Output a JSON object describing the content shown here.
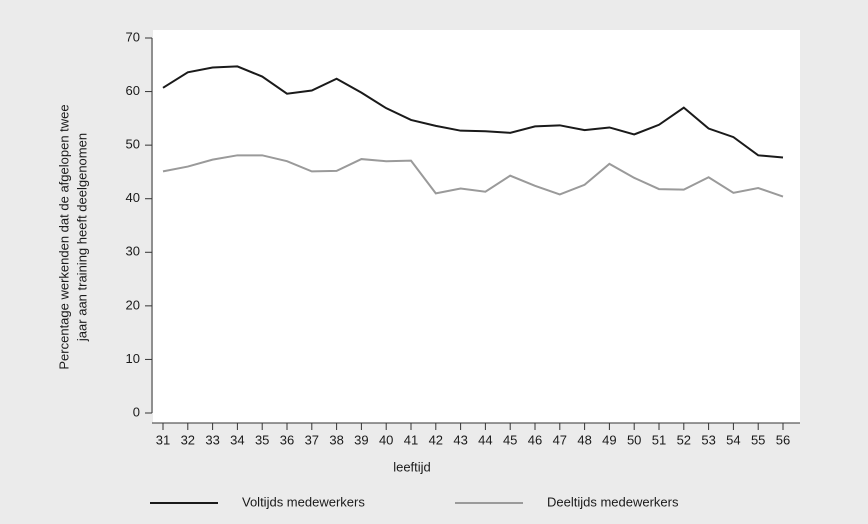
{
  "chart_data": {
    "type": "line",
    "y_label": [
      "Percentage werkenden dat de afgelopen twee",
      "jaar aan training heeft deelgenomen"
    ],
    "x_label": "leeftijd",
    "categories": [
      "31",
      "32",
      "33",
      "34",
      "35",
      "36",
      "37",
      "38",
      "39",
      "40",
      "41",
      "42",
      "43",
      "44",
      "45",
      "46",
      "47",
      "48",
      "49",
      "50",
      "51",
      "52",
      "53",
      "54",
      "55",
      "56"
    ],
    "series": [
      {
        "name": "Voltijds medewerkers",
        "color": "#1a1a1a",
        "values": [
          60.7,
          63.6,
          64.5,
          64.7,
          62.8,
          59.6,
          60.2,
          62.4,
          59.8,
          56.9,
          54.7,
          53.6,
          52.7,
          52.6,
          52.3,
          53.5,
          53.7,
          52.8,
          53.3,
          52.0,
          53.8,
          57.0,
          53.1,
          51.5,
          48.1,
          47.7
        ]
      },
      {
        "name": "Deeltijds medewerkers",
        "color": "#9a9a9a",
        "values": [
          45.1,
          46.0,
          47.3,
          48.1,
          48.1,
          47.0,
          45.1,
          45.2,
          47.4,
          47.0,
          47.1,
          41.0,
          41.9,
          41.3,
          44.3,
          42.4,
          40.8,
          42.6,
          46.5,
          43.9,
          41.8,
          41.7,
          44.0,
          41.1,
          42.0,
          40.4
        ]
      }
    ],
    "ylim": [
      0,
      70
    ],
    "yticks": [
      0,
      10,
      20,
      30,
      40,
      50,
      60,
      70
    ],
    "legend": "bottom"
  }
}
